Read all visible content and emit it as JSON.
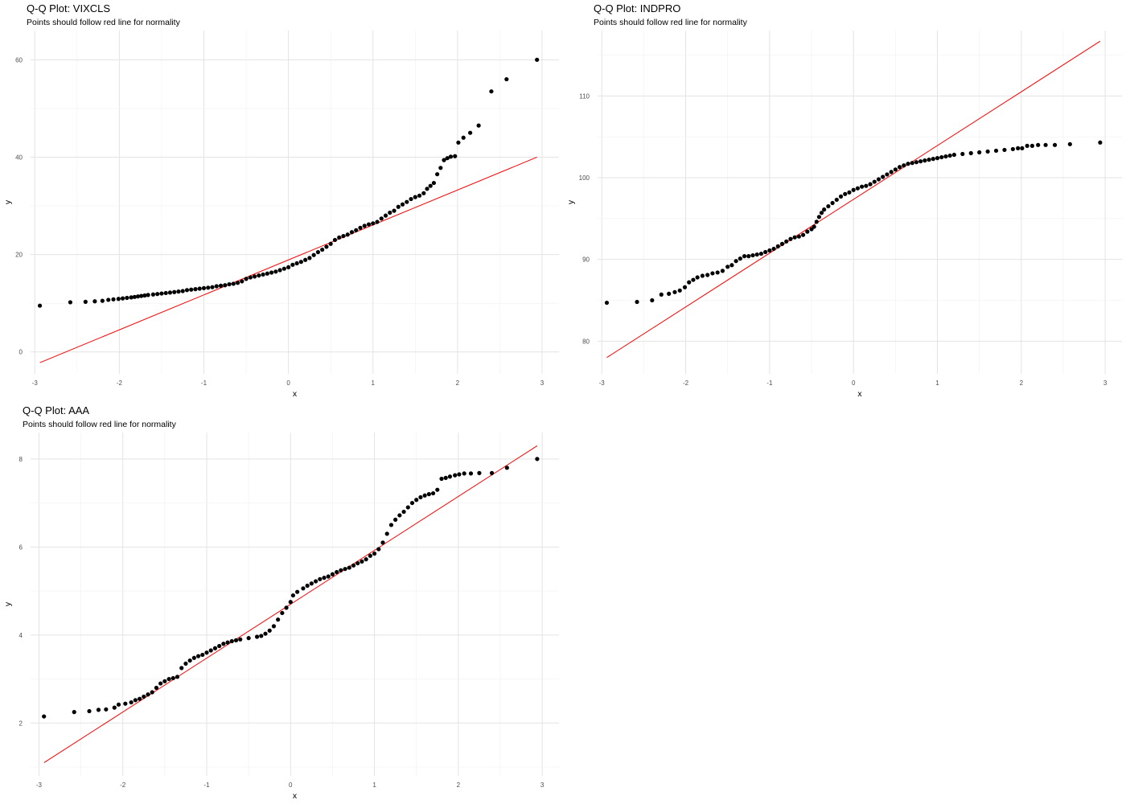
{
  "chart_data": [
    {
      "type": "scatter",
      "title": "Q-Q Plot: VIXCLS",
      "subtitle": "Points should follow red line for normality",
      "xlabel": "x",
      "ylabel": "y",
      "xlim": [
        -3.05,
        3.2
      ],
      "ylim": [
        -4.5,
        66
      ],
      "x_ticks": [
        -3,
        -2,
        -1,
        0,
        1,
        2,
        3
      ],
      "x_tick_labels": [
        "-3",
        "-2",
        "-1",
        "0",
        "1",
        "2",
        "3"
      ],
      "y_ticks": [
        0,
        20,
        40,
        60
      ],
      "y_tick_labels": [
        "0",
        "20",
        "40",
        "60"
      ],
      "grid": true,
      "reference_line": {
        "color": "#ff0000",
        "x": [
          -2.94,
          2.94
        ],
        "y": [
          -2.2,
          40
        ]
      },
      "points_color": "#000000",
      "points": [
        [
          -2.94,
          9.5
        ],
        [
          -2.58,
          10.2
        ],
        [
          -2.4,
          10.3
        ],
        [
          -2.29,
          10.4
        ],
        [
          -2.2,
          10.5
        ],
        [
          -2.13,
          10.7
        ],
        [
          -2.07,
          10.8
        ],
        [
          -2.01,
          10.9
        ],
        [
          -1.96,
          11.0
        ],
        [
          -1.91,
          11.1
        ],
        [
          -1.86,
          11.2
        ],
        [
          -1.82,
          11.3
        ],
        [
          -1.78,
          11.4
        ],
        [
          -1.74,
          11.5
        ],
        [
          -1.7,
          11.6
        ],
        [
          -1.66,
          11.7
        ],
        [
          -1.6,
          11.8
        ],
        [
          -1.55,
          11.9
        ],
        [
          -1.5,
          12.0
        ],
        [
          -1.45,
          12.1
        ],
        [
          -1.4,
          12.2
        ],
        [
          -1.35,
          12.3
        ],
        [
          -1.3,
          12.4
        ],
        [
          -1.25,
          12.5
        ],
        [
          -1.2,
          12.7
        ],
        [
          -1.15,
          12.8
        ],
        [
          -1.1,
          12.9
        ],
        [
          -1.05,
          13.0
        ],
        [
          -1.0,
          13.1
        ],
        [
          -0.95,
          13.2
        ],
        [
          -0.9,
          13.3
        ],
        [
          -0.85,
          13.5
        ],
        [
          -0.8,
          13.6
        ],
        [
          -0.75,
          13.7
        ],
        [
          -0.7,
          13.9
        ],
        [
          -0.65,
          14.0
        ],
        [
          -0.6,
          14.2
        ],
        [
          -0.55,
          14.5
        ],
        [
          -0.5,
          15.0
        ],
        [
          -0.45,
          15.3
        ],
        [
          -0.4,
          15.5
        ],
        [
          -0.35,
          15.7
        ],
        [
          -0.3,
          15.9
        ],
        [
          -0.25,
          16.1
        ],
        [
          -0.2,
          16.3
        ],
        [
          -0.15,
          16.5
        ],
        [
          -0.1,
          16.8
        ],
        [
          -0.05,
          17.1
        ],
        [
          0.0,
          17.4
        ],
        [
          0.05,
          17.9
        ],
        [
          0.1,
          18.2
        ],
        [
          0.15,
          18.5
        ],
        [
          0.2,
          18.9
        ],
        [
          0.25,
          19.3
        ],
        [
          0.3,
          19.9
        ],
        [
          0.35,
          20.5
        ],
        [
          0.4,
          21.0
        ],
        [
          0.45,
          21.6
        ],
        [
          0.5,
          22.2
        ],
        [
          0.55,
          23.0
        ],
        [
          0.6,
          23.5
        ],
        [
          0.65,
          23.8
        ],
        [
          0.7,
          24.1
        ],
        [
          0.75,
          24.6
        ],
        [
          0.8,
          25.0
        ],
        [
          0.85,
          25.5
        ],
        [
          0.9,
          25.9
        ],
        [
          0.95,
          26.2
        ],
        [
          1.0,
          26.4
        ],
        [
          1.05,
          26.7
        ],
        [
          1.1,
          27.4
        ],
        [
          1.15,
          28.0
        ],
        [
          1.2,
          28.6
        ],
        [
          1.25,
          29.0
        ],
        [
          1.3,
          29.8
        ],
        [
          1.35,
          30.3
        ],
        [
          1.4,
          30.8
        ],
        [
          1.45,
          31.4
        ],
        [
          1.5,
          31.8
        ],
        [
          1.55,
          32.1
        ],
        [
          1.6,
          32.6
        ],
        [
          1.64,
          33.5
        ],
        [
          1.68,
          34.1
        ],
        [
          1.72,
          34.7
        ],
        [
          1.76,
          36.5
        ],
        [
          1.8,
          37.8
        ],
        [
          1.84,
          39.4
        ],
        [
          1.88,
          39.8
        ],
        [
          1.92,
          40.1
        ],
        [
          1.97,
          40.2
        ],
        [
          2.01,
          43.0
        ],
        [
          2.07,
          44.0
        ],
        [
          2.15,
          45.0
        ],
        [
          2.25,
          46.5
        ],
        [
          2.4,
          53.5
        ],
        [
          2.58,
          56.0
        ],
        [
          2.94,
          60.0
        ]
      ]
    },
    {
      "type": "scatter",
      "title": "Q-Q Plot: INDPRO",
      "subtitle": "Points should follow red line for normality",
      "xlabel": "x",
      "ylabel": "y",
      "xlim": [
        -3.05,
        3.2
      ],
      "ylim": [
        76,
        118
      ],
      "x_ticks": [
        -3,
        -2,
        -1,
        0,
        1,
        2,
        3
      ],
      "x_tick_labels": [
        "-3",
        "-2",
        "-1",
        "0",
        "1",
        "2",
        "3"
      ],
      "y_ticks": [
        80,
        90,
        100,
        110
      ],
      "y_tick_labels": [
        "80",
        "90",
        "100",
        "110"
      ],
      "grid": true,
      "reference_line": {
        "color": "#ff0000",
        "x": [
          -2.94,
          2.94
        ],
        "y": [
          78.0,
          116.7
        ]
      },
      "points_color": "#000000",
      "points": [
        [
          -2.94,
          84.7
        ],
        [
          -2.58,
          84.8
        ],
        [
          -2.4,
          85.0
        ],
        [
          -2.29,
          85.7
        ],
        [
          -2.2,
          85.8
        ],
        [
          -2.13,
          86.0
        ],
        [
          -2.07,
          86.2
        ],
        [
          -2.01,
          86.6
        ],
        [
          -1.96,
          87.2
        ],
        [
          -1.91,
          87.5
        ],
        [
          -1.86,
          87.8
        ],
        [
          -1.8,
          88.0
        ],
        [
          -1.74,
          88.1
        ],
        [
          -1.68,
          88.3
        ],
        [
          -1.62,
          88.4
        ],
        [
          -1.56,
          88.6
        ],
        [
          -1.5,
          89.1
        ],
        [
          -1.45,
          89.3
        ],
        [
          -1.4,
          89.8
        ],
        [
          -1.35,
          90.1
        ],
        [
          -1.3,
          90.4
        ],
        [
          -1.25,
          90.4
        ],
        [
          -1.2,
          90.5
        ],
        [
          -1.15,
          90.6
        ],
        [
          -1.1,
          90.7
        ],
        [
          -1.05,
          90.9
        ],
        [
          -1.0,
          91.1
        ],
        [
          -0.95,
          91.3
        ],
        [
          -0.9,
          91.6
        ],
        [
          -0.85,
          91.9
        ],
        [
          -0.8,
          92.2
        ],
        [
          -0.75,
          92.5
        ],
        [
          -0.7,
          92.7
        ],
        [
          -0.65,
          92.8
        ],
        [
          -0.6,
          93.0
        ],
        [
          -0.55,
          93.4
        ],
        [
          -0.5,
          93.7
        ],
        [
          -0.47,
          94.0
        ],
        [
          -0.44,
          94.6
        ],
        [
          -0.41,
          95.2
        ],
        [
          -0.38,
          95.7
        ],
        [
          -0.35,
          96.1
        ],
        [
          -0.3,
          96.5
        ],
        [
          -0.25,
          96.9
        ],
        [
          -0.2,
          97.3
        ],
        [
          -0.15,
          97.7
        ],
        [
          -0.1,
          98.0
        ],
        [
          -0.05,
          98.2
        ],
        [
          0.0,
          98.5
        ],
        [
          0.05,
          98.7
        ],
        [
          0.1,
          98.9
        ],
        [
          0.15,
          99.0
        ],
        [
          0.2,
          99.2
        ],
        [
          0.25,
          99.5
        ],
        [
          0.3,
          99.8
        ],
        [
          0.35,
          100.1
        ],
        [
          0.4,
          100.4
        ],
        [
          0.45,
          100.7
        ],
        [
          0.5,
          101.0
        ],
        [
          0.55,
          101.3
        ],
        [
          0.6,
          101.5
        ],
        [
          0.65,
          101.7
        ],
        [
          0.7,
          101.8
        ],
        [
          0.75,
          101.9
        ],
        [
          0.8,
          102.0
        ],
        [
          0.85,
          102.1
        ],
        [
          0.9,
          102.2
        ],
        [
          0.95,
          102.3
        ],
        [
          1.0,
          102.4
        ],
        [
          1.05,
          102.5
        ],
        [
          1.1,
          102.6
        ],
        [
          1.15,
          102.7
        ],
        [
          1.2,
          102.8
        ],
        [
          1.3,
          102.9
        ],
        [
          1.4,
          103.0
        ],
        [
          1.5,
          103.1
        ],
        [
          1.6,
          103.2
        ],
        [
          1.7,
          103.3
        ],
        [
          1.8,
          103.4
        ],
        [
          1.9,
          103.5
        ],
        [
          1.96,
          103.6
        ],
        [
          2.01,
          103.6
        ],
        [
          2.07,
          103.9
        ],
        [
          2.13,
          103.9
        ],
        [
          2.2,
          104.0
        ],
        [
          2.29,
          104.0
        ],
        [
          2.4,
          104.0
        ],
        [
          2.58,
          104.1
        ],
        [
          2.94,
          104.3
        ]
      ]
    },
    {
      "type": "scatter",
      "title": "Q-Q Plot: AAA",
      "subtitle": "Points should follow red line for normality",
      "xlabel": "x",
      "ylabel": "y",
      "xlim": [
        -3.1,
        3.2
      ],
      "ylim": [
        0.8,
        8.6
      ],
      "x_ticks": [
        -3,
        -2,
        -1,
        0,
        1,
        2,
        3
      ],
      "x_tick_labels": [
        "-3",
        "-2",
        "-1",
        "0",
        "1",
        "2",
        "3"
      ],
      "y_ticks": [
        2,
        4,
        6,
        8
      ],
      "y_tick_labels": [
        "2",
        "4",
        "6",
        "8"
      ],
      "grid": true,
      "reference_line": {
        "color": "#ff0000",
        "x": [
          -2.94,
          2.94
        ],
        "y": [
          1.1,
          8.3
        ]
      },
      "points_color": "#000000",
      "points": [
        [
          -2.94,
          2.15
        ],
        [
          -2.58,
          2.25
        ],
        [
          -2.4,
          2.27
        ],
        [
          -2.29,
          2.3
        ],
        [
          -2.2,
          2.31
        ],
        [
          -2.1,
          2.35
        ],
        [
          -2.05,
          2.42
        ],
        [
          -1.97,
          2.44
        ],
        [
          -1.9,
          2.47
        ],
        [
          -1.85,
          2.52
        ],
        [
          -1.8,
          2.55
        ],
        [
          -1.75,
          2.6
        ],
        [
          -1.7,
          2.65
        ],
        [
          -1.65,
          2.7
        ],
        [
          -1.6,
          2.8
        ],
        [
          -1.55,
          2.9
        ],
        [
          -1.5,
          2.95
        ],
        [
          -1.45,
          3.0
        ],
        [
          -1.4,
          3.02
        ],
        [
          -1.35,
          3.05
        ],
        [
          -1.3,
          3.25
        ],
        [
          -1.25,
          3.35
        ],
        [
          -1.2,
          3.42
        ],
        [
          -1.15,
          3.48
        ],
        [
          -1.1,
          3.52
        ],
        [
          -1.05,
          3.55
        ],
        [
          -1.0,
          3.6
        ],
        [
          -0.95,
          3.65
        ],
        [
          -0.9,
          3.7
        ],
        [
          -0.85,
          3.75
        ],
        [
          -0.8,
          3.8
        ],
        [
          -0.75,
          3.83
        ],
        [
          -0.7,
          3.86
        ],
        [
          -0.65,
          3.88
        ],
        [
          -0.6,
          3.9
        ],
        [
          -0.5,
          3.93
        ],
        [
          -0.4,
          3.96
        ],
        [
          -0.35,
          3.98
        ],
        [
          -0.3,
          4.03
        ],
        [
          -0.25,
          4.1
        ],
        [
          -0.2,
          4.2
        ],
        [
          -0.15,
          4.35
        ],
        [
          -0.1,
          4.5
        ],
        [
          -0.05,
          4.62
        ],
        [
          0.0,
          4.75
        ],
        [
          0.03,
          4.9
        ],
        [
          0.08,
          4.98
        ],
        [
          0.15,
          5.06
        ],
        [
          0.2,
          5.12
        ],
        [
          0.25,
          5.17
        ],
        [
          0.3,
          5.22
        ],
        [
          0.35,
          5.27
        ],
        [
          0.4,
          5.3
        ],
        [
          0.45,
          5.33
        ],
        [
          0.5,
          5.38
        ],
        [
          0.55,
          5.43
        ],
        [
          0.6,
          5.47
        ],
        [
          0.65,
          5.5
        ],
        [
          0.7,
          5.53
        ],
        [
          0.75,
          5.58
        ],
        [
          0.8,
          5.63
        ],
        [
          0.85,
          5.67
        ],
        [
          0.9,
          5.72
        ],
        [
          0.95,
          5.8
        ],
        [
          1.0,
          5.85
        ],
        [
          1.05,
          5.95
        ],
        [
          1.1,
          6.1
        ],
        [
          1.15,
          6.3
        ],
        [
          1.2,
          6.5
        ],
        [
          1.25,
          6.62
        ],
        [
          1.3,
          6.72
        ],
        [
          1.35,
          6.8
        ],
        [
          1.4,
          6.9
        ],
        [
          1.45,
          7.0
        ],
        [
          1.5,
          7.07
        ],
        [
          1.55,
          7.13
        ],
        [
          1.6,
          7.17
        ],
        [
          1.65,
          7.2
        ],
        [
          1.7,
          7.22
        ],
        [
          1.75,
          7.3
        ],
        [
          1.8,
          7.55
        ],
        [
          1.85,
          7.57
        ],
        [
          1.9,
          7.6
        ],
        [
          1.96,
          7.63
        ],
        [
          2.01,
          7.65
        ],
        [
          2.07,
          7.67
        ],
        [
          2.15,
          7.67
        ],
        [
          2.25,
          7.68
        ],
        [
          2.4,
          7.68
        ],
        [
          2.58,
          7.8
        ],
        [
          2.94,
          8.0
        ]
      ]
    }
  ]
}
